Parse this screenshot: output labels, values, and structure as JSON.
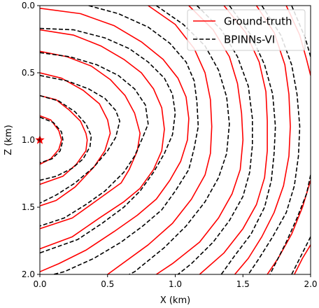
{
  "chart_data": {
    "type": "line",
    "title": "",
    "xlabel": "X (km)",
    "ylabel": "Z (km)",
    "xlim": [
      0.0,
      2.0
    ],
    "ylim": [
      0.0,
      2.0
    ],
    "y_inverted": true,
    "xticks": [
      "0.0",
      "0.5",
      "1.0",
      "1.5",
      "2.0"
    ],
    "yticks": [
      "0.0",
      "0.5",
      "1.0",
      "1.5",
      "2.0"
    ],
    "grid": false,
    "legend": {
      "placement": "top-right",
      "entries": [
        {
          "label": "Ground-truth",
          "color": "#ff0000",
          "style": "solid"
        },
        {
          "label": "BPINNs-VI",
          "color": "#000000",
          "style": "dashed"
        }
      ]
    },
    "source": {
      "marker": "star",
      "x": 0.0,
      "z": 1.0,
      "color": "#ff0000"
    },
    "series": [
      {
        "name": "Ground-truth",
        "color": "#ff0000",
        "style": "solid",
        "contours": [
          [
            [
              0.0,
              0.82
            ],
            [
              0.08,
              0.85
            ],
            [
              0.14,
              0.93
            ],
            [
              0.16,
              1.0
            ],
            [
              0.14,
              1.07
            ],
            [
              0.08,
              1.14
            ],
            [
              0.0,
              1.18
            ]
          ],
          [
            [
              0.0,
              0.67
            ],
            [
              0.12,
              0.7
            ],
            [
              0.22,
              0.78
            ],
            [
              0.3,
              0.86
            ],
            [
              0.34,
              0.95
            ],
            [
              0.35,
              1.0
            ],
            [
              0.34,
              1.08
            ],
            [
              0.27,
              1.18
            ],
            [
              0.17,
              1.27
            ],
            [
              0.0,
              1.33
            ]
          ],
          [
            [
              0.0,
              0.5
            ],
            [
              0.16,
              0.54
            ],
            [
              0.32,
              0.63
            ],
            [
              0.44,
              0.73
            ],
            [
              0.5,
              0.85
            ],
            [
              0.52,
              0.95
            ],
            [
              0.48,
              1.08
            ],
            [
              0.4,
              1.2
            ],
            [
              0.26,
              1.35
            ],
            [
              0.12,
              1.45
            ],
            [
              0.0,
              1.49
            ]
          ],
          [
            [
              0.0,
              0.34
            ],
            [
              0.2,
              0.38
            ],
            [
              0.38,
              0.45
            ],
            [
              0.52,
              0.55
            ],
            [
              0.63,
              0.67
            ],
            [
              0.7,
              0.8
            ],
            [
              0.74,
              0.95
            ],
            [
              0.72,
              1.08
            ],
            [
              0.66,
              1.22
            ],
            [
              0.6,
              1.32
            ],
            [
              0.42,
              1.45
            ],
            [
              0.24,
              1.58
            ],
            [
              0.0,
              1.66
            ]
          ],
          [
            [
              0.0,
              0.18
            ],
            [
              0.25,
              0.22
            ],
            [
              0.45,
              0.3
            ],
            [
              0.62,
              0.4
            ],
            [
              0.75,
              0.5
            ],
            [
              0.84,
              0.62
            ],
            [
              0.9,
              0.76
            ],
            [
              0.92,
              0.92
            ],
            [
              0.9,
              1.08
            ],
            [
              0.84,
              1.22
            ],
            [
              0.74,
              1.36
            ],
            [
              0.62,
              1.46
            ],
            [
              0.44,
              1.58
            ],
            [
              0.24,
              1.72
            ],
            [
              0.0,
              1.81
            ]
          ],
          [
            [
              0.0,
              0.02
            ],
            [
              0.3,
              0.06
            ],
            [
              0.55,
              0.15
            ],
            [
              0.75,
              0.27
            ],
            [
              0.91,
              0.4
            ],
            [
              1.02,
              0.54
            ],
            [
              1.08,
              0.68
            ],
            [
              1.1,
              0.84
            ],
            [
              1.09,
              1.0
            ],
            [
              1.04,
              1.16
            ],
            [
              0.96,
              1.3
            ],
            [
              0.86,
              1.44
            ],
            [
              0.72,
              1.56
            ],
            [
              0.55,
              1.68
            ],
            [
              0.34,
              1.82
            ],
            [
              0.14,
              1.92
            ],
            [
              0.0,
              1.98
            ]
          ],
          [
            [
              0.8,
              0.0
            ],
            [
              1.0,
              0.14
            ],
            [
              1.14,
              0.32
            ],
            [
              1.22,
              0.5
            ],
            [
              1.26,
              0.7
            ],
            [
              1.27,
              0.9
            ],
            [
              1.26,
              1.1
            ],
            [
              1.22,
              1.26
            ],
            [
              1.12,
              1.44
            ],
            [
              0.98,
              1.62
            ],
            [
              0.8,
              1.78
            ],
            [
              0.5,
              2.0
            ]
          ],
          [
            [
              1.1,
              0.0
            ],
            [
              1.28,
              0.18
            ],
            [
              1.4,
              0.38
            ],
            [
              1.46,
              0.58
            ],
            [
              1.49,
              0.8
            ],
            [
              1.5,
              1.0
            ],
            [
              1.48,
              1.22
            ],
            [
              1.42,
              1.4
            ],
            [
              1.32,
              1.58
            ],
            [
              1.18,
              1.76
            ],
            [
              0.98,
              1.92
            ],
            [
              0.86,
              2.0
            ]
          ],
          [
            [
              1.36,
              0.0
            ],
            [
              1.52,
              0.2
            ],
            [
              1.62,
              0.42
            ],
            [
              1.67,
              0.64
            ],
            [
              1.68,
              0.86
            ],
            [
              1.68,
              1.08
            ],
            [
              1.66,
              1.28
            ],
            [
              1.6,
              1.48
            ],
            [
              1.5,
              1.66
            ],
            [
              1.36,
              1.84
            ],
            [
              1.18,
              2.0
            ]
          ],
          [
            [
              1.6,
              0.0
            ],
            [
              1.73,
              0.2
            ],
            [
              1.81,
              0.44
            ],
            [
              1.84,
              0.66
            ],
            [
              1.85,
              0.9
            ],
            [
              1.84,
              1.12
            ],
            [
              1.8,
              1.34
            ],
            [
              1.73,
              1.54
            ],
            [
              1.64,
              1.72
            ],
            [
              1.54,
              1.88
            ],
            [
              1.44,
              2.0
            ]
          ],
          [
            [
              1.82,
              0.0
            ],
            [
              1.92,
              0.22
            ],
            [
              1.97,
              0.4
            ],
            [
              2.0,
              0.52
            ]
          ],
          [
            [
              2.0,
              1.3
            ],
            [
              1.94,
              1.5
            ],
            [
              1.86,
              1.7
            ],
            [
              1.76,
              1.88
            ],
            [
              1.68,
              2.0
            ]
          ],
          [
            [
              2.0,
              1.78
            ],
            [
              1.94,
              1.88
            ],
            [
              1.88,
              2.0
            ]
          ]
        ]
      },
      {
        "name": "BPINNs-VI",
        "color": "#000000",
        "style": "dashed",
        "contours": [
          [
            [
              0.0,
              0.83
            ],
            [
              0.1,
              0.87
            ],
            [
              0.16,
              0.94
            ],
            [
              0.17,
              1.0
            ],
            [
              0.15,
              1.08
            ],
            [
              0.09,
              1.14
            ],
            [
              0.0,
              1.17
            ]
          ],
          [
            [
              0.0,
              0.67
            ],
            [
              0.14,
              0.71
            ],
            [
              0.26,
              0.79
            ],
            [
              0.34,
              0.88
            ],
            [
              0.38,
              0.97
            ],
            [
              0.37,
              1.05
            ],
            [
              0.32,
              1.14
            ],
            [
              0.24,
              1.21
            ],
            [
              0.12,
              1.27
            ],
            [
              0.0,
              1.3
            ]
          ],
          [
            [
              0.0,
              0.52
            ],
            [
              0.2,
              0.56
            ],
            [
              0.36,
              0.62
            ],
            [
              0.48,
              0.69
            ],
            [
              0.56,
              0.78
            ],
            [
              0.59,
              0.86
            ],
            [
              0.56,
              0.98
            ],
            [
              0.5,
              1.08
            ],
            [
              0.4,
              1.2
            ],
            [
              0.26,
              1.32
            ],
            [
              0.12,
              1.41
            ],
            [
              0.0,
              1.47
            ]
          ],
          [
            [
              0.0,
              0.35
            ],
            [
              0.22,
              0.38
            ],
            [
              0.42,
              0.44
            ],
            [
              0.58,
              0.52
            ],
            [
              0.7,
              0.62
            ],
            [
              0.78,
              0.74
            ],
            [
              0.8,
              0.88
            ],
            [
              0.76,
              0.98
            ],
            [
              0.7,
              1.12
            ],
            [
              0.62,
              1.24
            ],
            [
              0.48,
              1.38
            ],
            [
              0.34,
              1.48
            ],
            [
              0.18,
              1.58
            ],
            [
              0.0,
              1.64
            ]
          ],
          [
            [
              0.0,
              0.17
            ],
            [
              0.25,
              0.18
            ],
            [
              0.48,
              0.24
            ],
            [
              0.66,
              0.32
            ],
            [
              0.8,
              0.42
            ],
            [
              0.92,
              0.54
            ],
            [
              0.98,
              0.66
            ],
            [
              1.0,
              0.8
            ],
            [
              0.98,
              0.96
            ],
            [
              0.92,
              1.1
            ],
            [
              0.84,
              1.24
            ],
            [
              0.74,
              1.38
            ],
            [
              0.62,
              1.5
            ],
            [
              0.46,
              1.62
            ],
            [
              0.28,
              1.74
            ],
            [
              0.0,
              1.84
            ]
          ],
          [
            [
              0.36,
              0.0
            ],
            [
              0.58,
              0.06
            ],
            [
              0.8,
              0.16
            ],
            [
              0.96,
              0.28
            ],
            [
              1.08,
              0.42
            ],
            [
              1.14,
              0.56
            ],
            [
              1.16,
              0.72
            ],
            [
              1.17,
              0.9
            ],
            [
              1.14,
              1.06
            ],
            [
              1.1,
              1.22
            ],
            [
              1.0,
              1.38
            ],
            [
              0.9,
              1.52
            ],
            [
              0.76,
              1.64
            ],
            [
              0.6,
              1.76
            ],
            [
              0.4,
              1.88
            ],
            [
              0.18,
              1.98
            ],
            [
              0.1,
              2.0
            ]
          ],
          [
            [
              0.86,
              0.0
            ],
            [
              1.06,
              0.14
            ],
            [
              1.22,
              0.3
            ],
            [
              1.32,
              0.48
            ],
            [
              1.38,
              0.68
            ],
            [
              1.4,
              0.88
            ],
            [
              1.38,
              1.1
            ],
            [
              1.32,
              1.28
            ],
            [
              1.22,
              1.46
            ],
            [
              1.08,
              1.64
            ],
            [
              0.92,
              1.8
            ],
            [
              0.7,
              1.98
            ],
            [
              0.66,
              2.0
            ]
          ],
          [
            [
              1.16,
              0.0
            ],
            [
              1.34,
              0.18
            ],
            [
              1.46,
              0.38
            ],
            [
              1.54,
              0.6
            ],
            [
              1.57,
              0.84
            ],
            [
              1.57,
              1.04
            ],
            [
              1.55,
              1.24
            ],
            [
              1.5,
              1.42
            ],
            [
              1.4,
              1.6
            ],
            [
              1.28,
              1.76
            ],
            [
              1.12,
              1.92
            ],
            [
              1.02,
              2.0
            ]
          ],
          [
            [
              1.4,
              0.0
            ],
            [
              1.56,
              0.22
            ],
            [
              1.66,
              0.44
            ],
            [
              1.72,
              0.66
            ],
            [
              1.74,
              0.9
            ],
            [
              1.73,
              1.1
            ],
            [
              1.71,
              1.3
            ],
            [
              1.66,
              1.5
            ],
            [
              1.56,
              1.7
            ],
            [
              1.44,
              1.86
            ],
            [
              1.34,
              2.0
            ]
          ],
          [
            [
              1.64,
              0.0
            ],
            [
              1.78,
              0.22
            ],
            [
              1.86,
              0.44
            ],
            [
              1.9,
              0.66
            ],
            [
              1.92,
              0.9
            ],
            [
              1.91,
              1.12
            ],
            [
              1.88,
              1.34
            ],
            [
              1.82,
              1.54
            ],
            [
              1.72,
              1.72
            ],
            [
              1.62,
              1.88
            ],
            [
              1.54,
              2.0
            ]
          ],
          [
            [
              1.86,
              0.0
            ],
            [
              1.96,
              0.24
            ],
            [
              2.0,
              0.38
            ]
          ],
          [
            [
              2.0,
              1.26
            ],
            [
              1.97,
              1.4
            ],
            [
              1.9,
              1.58
            ],
            [
              1.82,
              1.76
            ],
            [
              1.74,
              1.92
            ],
            [
              1.7,
              2.0
            ]
          ],
          [
            [
              2.0,
              1.72
            ],
            [
              1.94,
              1.84
            ],
            [
              1.88,
              1.96
            ],
            [
              1.86,
              2.0
            ]
          ]
        ]
      }
    ]
  }
}
